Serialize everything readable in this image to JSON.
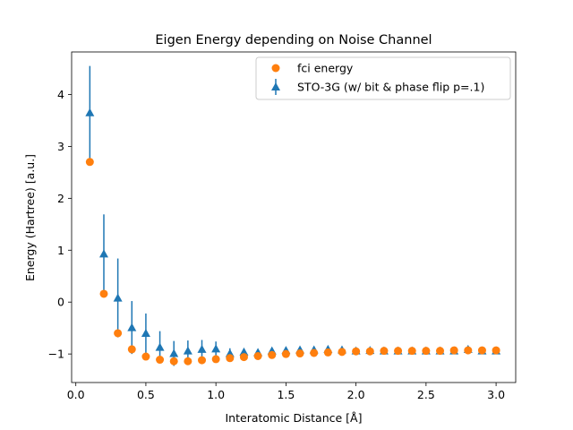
{
  "chart_data": {
    "type": "scatter",
    "title": "Eigen Energy depending on Noise Channel",
    "xlabel": "Interatomic Distance [Å]",
    "ylabel": "Energy (Hartree) [a.u.]",
    "xlim": [
      -0.03,
      3.14
    ],
    "ylim": [
      -1.55,
      4.82
    ],
    "xticks": [
      0.0,
      0.5,
      1.0,
      1.5,
      2.0,
      2.5,
      3.0
    ],
    "xtick_labels": [
      "0.0",
      "0.5",
      "1.0",
      "1.5",
      "2.0",
      "2.5",
      "3.0"
    ],
    "yticks": [
      -1,
      0,
      1,
      2,
      3,
      4
    ],
    "ytick_labels": [
      "−1",
      "0",
      "1",
      "2",
      "3",
      "4"
    ],
    "grid": false,
    "legend_position": "top-right",
    "series": [
      {
        "name": "fci energy",
        "color": "#ff7f0e",
        "marker": "circle",
        "x": [
          0.1,
          0.2,
          0.3,
          0.4,
          0.5,
          0.6,
          0.7,
          0.8,
          0.9,
          1.0,
          1.1,
          1.2,
          1.3,
          1.4,
          1.5,
          1.6,
          1.7,
          1.8,
          1.9,
          2.0,
          2.1,
          2.2,
          2.3,
          2.4,
          2.5,
          2.6,
          2.7,
          2.8,
          2.9,
          3.0
        ],
        "y": [
          2.7,
          0.16,
          -0.6,
          -0.91,
          -1.05,
          -1.11,
          -1.14,
          -1.14,
          -1.12,
          -1.1,
          -1.08,
          -1.06,
          -1.04,
          -1.02,
          -1.0,
          -0.99,
          -0.98,
          -0.97,
          -0.96,
          -0.95,
          -0.95,
          -0.94,
          -0.94,
          -0.94,
          -0.94,
          -0.94,
          -0.93,
          -0.93,
          -0.93,
          -0.93
        ]
      },
      {
        "name": "STO-3G (w/ bit & phase flip p=.1)",
        "color": "#1f77b4",
        "marker": "triangle-up",
        "x": [
          0.1,
          0.2,
          0.3,
          0.4,
          0.5,
          0.6,
          0.7,
          0.8,
          0.9,
          1.0,
          1.1,
          1.2,
          1.3,
          1.4,
          1.5,
          1.6,
          1.7,
          1.8,
          1.9,
          2.0,
          2.1,
          2.2,
          2.3,
          2.4,
          2.5,
          2.6,
          2.7,
          2.8,
          2.9,
          3.0
        ],
        "y": [
          3.65,
          0.93,
          0.08,
          -0.49,
          -0.6,
          -0.87,
          -0.99,
          -0.94,
          -0.91,
          -0.9,
          -0.99,
          -0.96,
          -0.97,
          -0.94,
          -0.93,
          -0.92,
          -0.92,
          -0.91,
          -0.92,
          -0.94,
          -0.93,
          -0.94,
          -0.94,
          -0.94,
          -0.94,
          -0.94,
          -0.94,
          -0.91,
          -0.94,
          -0.94
        ],
        "err": [
          0.9,
          0.76,
          0.76,
          0.51,
          0.38,
          0.31,
          0.24,
          0.2,
          0.18,
          0.14,
          0.1,
          0.06,
          0.05,
          0.05,
          0.04,
          0.04,
          0.03,
          0.03,
          0.04,
          0.03,
          0.03,
          0.03,
          0.03,
          0.03,
          0.03,
          0.03,
          0.03,
          0.04,
          0.02,
          0.03
        ]
      }
    ]
  }
}
